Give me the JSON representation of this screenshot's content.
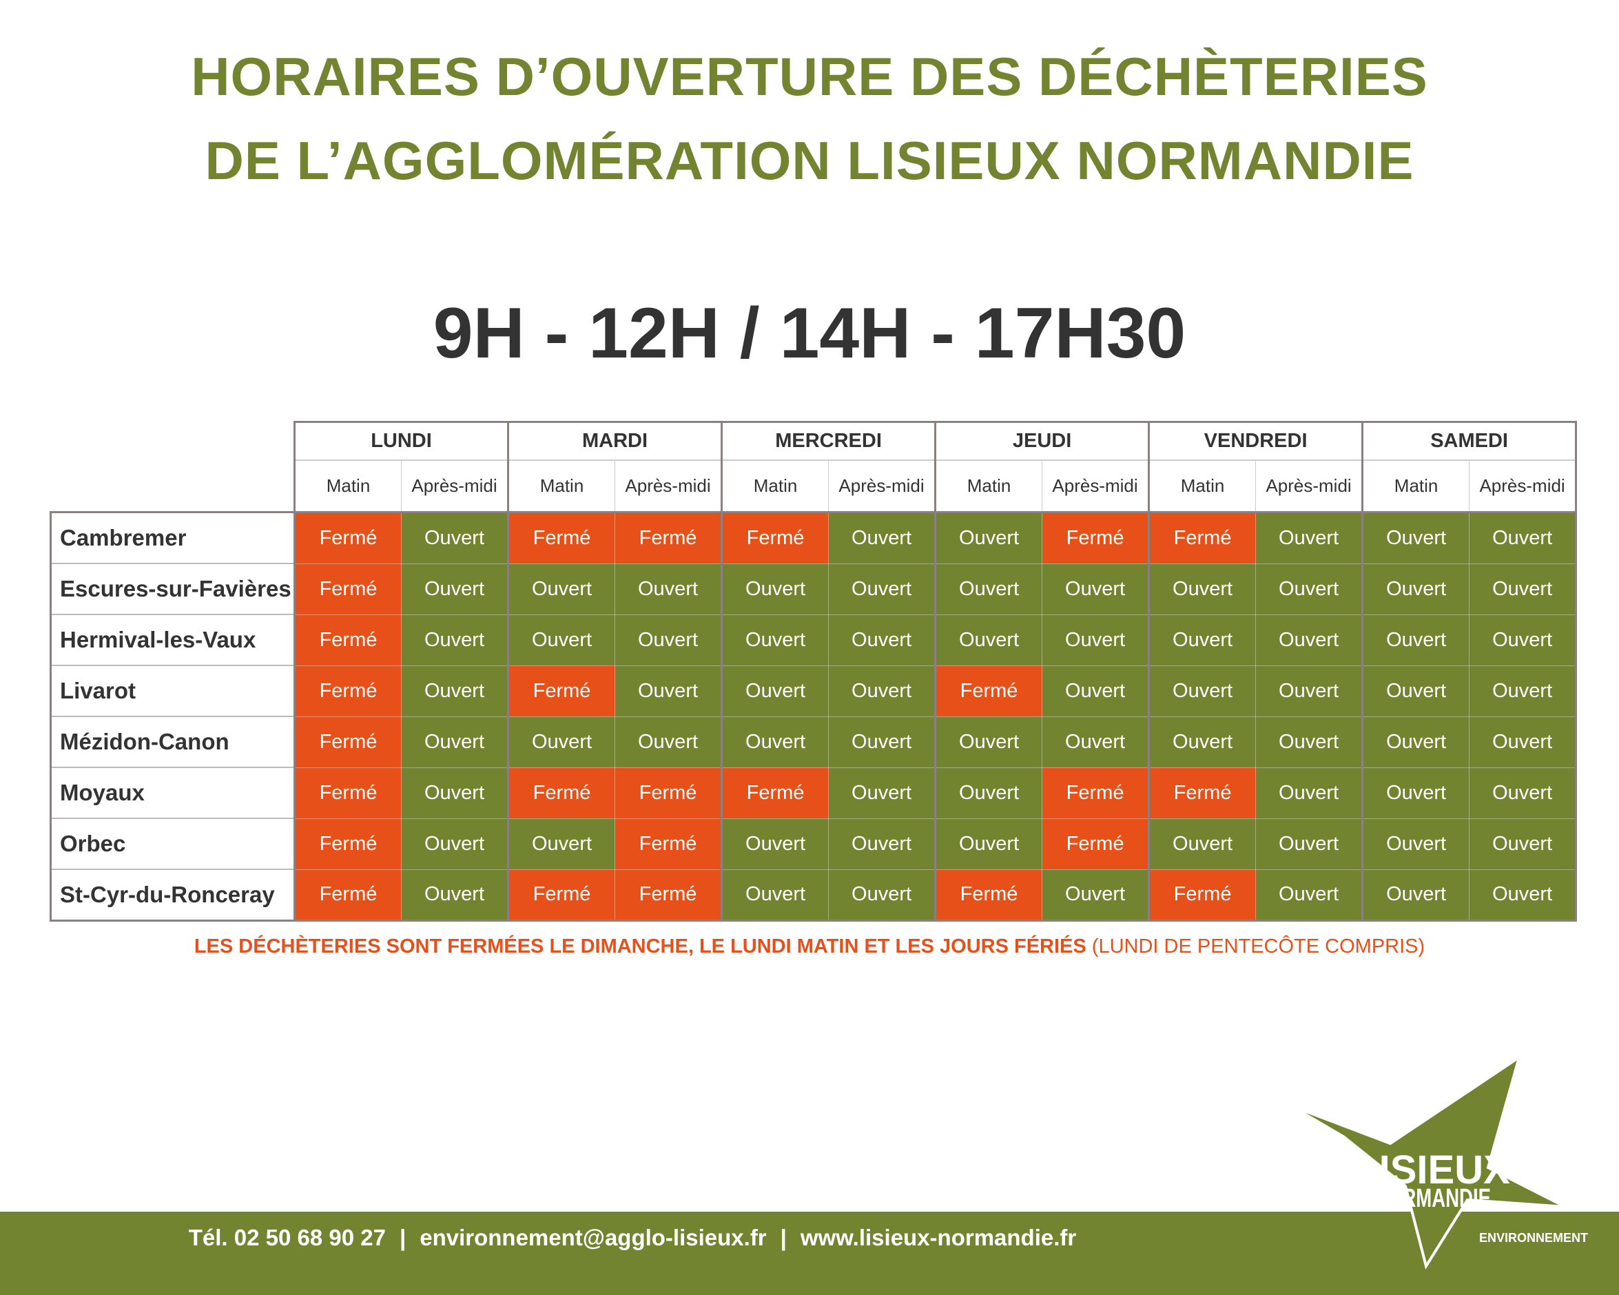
{
  "header": {
    "title_lines": [
      "HORAIRES D’OUVERTURE DES DÉCHÈTERIES",
      "DE L’AGGLOMÉRATION LISIEUX NORMANDIE"
    ],
    "hours": "9H - 12H / 14H - 17H30"
  },
  "table": {
    "days": [
      "LUNDI",
      "MARDI",
      "MERCREDI",
      "JEUDI",
      "VENDREDI",
      "SAMEDI"
    ],
    "periods": [
      "Matin",
      "Après-midi"
    ],
    "status_colors": {
      "Fermé": "#e8501a",
      "Ouvert": "#738431"
    },
    "rows": [
      {
        "name": "Cambremer",
        "cells": [
          "Fermé",
          "Ouvert",
          "Fermé",
          "Fermé",
          "Fermé",
          "Ouvert",
          "Ouvert",
          "Fermé",
          "Fermé",
          "Ouvert",
          "Ouvert",
          "Ouvert"
        ]
      },
      {
        "name": "Escures-sur-Favières",
        "cells": [
          "Fermé",
          "Ouvert",
          "Ouvert",
          "Ouvert",
          "Ouvert",
          "Ouvert",
          "Ouvert",
          "Ouvert",
          "Ouvert",
          "Ouvert",
          "Ouvert",
          "Ouvert"
        ]
      },
      {
        "name": "Hermival-les-Vaux",
        "cells": [
          "Fermé",
          "Ouvert",
          "Ouvert",
          "Ouvert",
          "Ouvert",
          "Ouvert",
          "Ouvert",
          "Ouvert",
          "Ouvert",
          "Ouvert",
          "Ouvert",
          "Ouvert"
        ]
      },
      {
        "name": "Livarot",
        "cells": [
          "Fermé",
          "Ouvert",
          "Fermé",
          "Ouvert",
          "Ouvert",
          "Ouvert",
          "Fermé",
          "Ouvert",
          "Ouvert",
          "Ouvert",
          "Ouvert",
          "Ouvert"
        ]
      },
      {
        "name": "Mézidon-Canon",
        "cells": [
          "Fermé",
          "Ouvert",
          "Ouvert",
          "Ouvert",
          "Ouvert",
          "Ouvert",
          "Ouvert",
          "Ouvert",
          "Ouvert",
          "Ouvert",
          "Ouvert",
          "Ouvert"
        ]
      },
      {
        "name": "Moyaux",
        "cells": [
          "Fermé",
          "Ouvert",
          "Fermé",
          "Fermé",
          "Fermé",
          "Ouvert",
          "Ouvert",
          "Fermé",
          "Fermé",
          "Ouvert",
          "Ouvert",
          "Ouvert"
        ]
      },
      {
        "name": "Orbec",
        "cells": [
          "Fermé",
          "Ouvert",
          "Ouvert",
          "Fermé",
          "Ouvert",
          "Ouvert",
          "Ouvert",
          "Fermé",
          "Ouvert",
          "Ouvert",
          "Ouvert",
          "Ouvert"
        ]
      },
      {
        "name": "St-Cyr-du-Ronceray",
        "cells": [
          "Fermé",
          "Ouvert",
          "Fermé",
          "Fermé",
          "Ouvert",
          "Ouvert",
          "Fermé",
          "Ouvert",
          "Fermé",
          "Ouvert",
          "Ouvert",
          "Ouvert"
        ]
      }
    ]
  },
  "note": {
    "bold": "LES DÉCHÈTERIES SONT FERMÉES LE DIMANCHE, LE LUNDI MATIN ET LES JOURS FÉRIÉS",
    "normal": "(LUNDI DE PENTECÔTE COMPRIS)"
  },
  "footer": {
    "phone": "Tél. 02 50 68 90 27",
    "separator": "|",
    "email": "environnement@agglo-lisieux.fr",
    "website": "www.lisieux-normandie.fr"
  },
  "logo": {
    "line1": "LISIEUX",
    "line2": "NORMANDIE",
    "line3": "ENVIRONNEMENT"
  }
}
